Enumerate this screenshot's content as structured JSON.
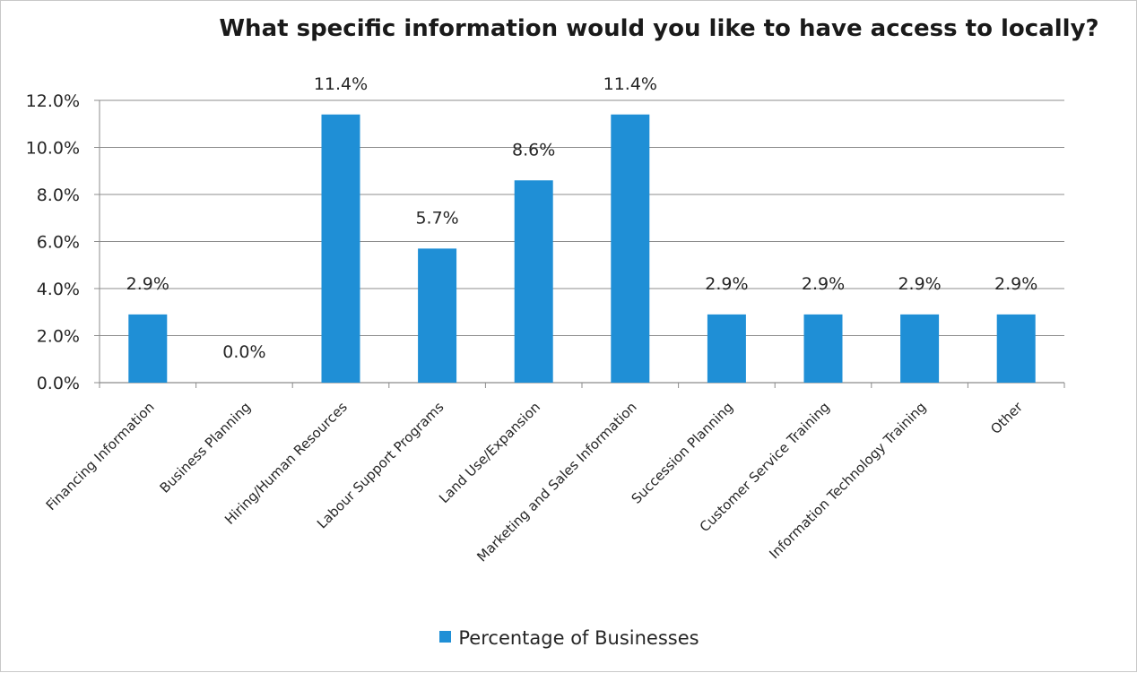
{
  "chart_data": {
    "type": "bar",
    "title": "What specific information would you like to have access to locally?",
    "xlabel": "",
    "ylabel": "",
    "categories": [
      "Financing Information",
      "Business Planning",
      "Hiring/Human Resources",
      "Labour Support Programs",
      "Land Use/Expansion",
      "Marketing and Sales Information",
      "Succession Planning",
      "Customer Service Training",
      "Information Technology Training",
      "Other"
    ],
    "series": [
      {
        "name": "Percentage of Businesses",
        "values": [
          2.9,
          0.0,
          11.4,
          5.7,
          8.6,
          11.4,
          2.9,
          2.9,
          2.9,
          2.9
        ],
        "labels": [
          "2.9%",
          "0.0%",
          "11.4%",
          "5.7%",
          "8.6%",
          "11.4%",
          "2.9%",
          "2.9%",
          "2.9%",
          "2.9%"
        ],
        "color": "#1f8fd6"
      }
    ],
    "ylim": [
      0,
      12
    ],
    "yticks": [
      0,
      2,
      4,
      6,
      8,
      10,
      12
    ],
    "ytick_labels": [
      "0.0%",
      "2.0%",
      "4.0%",
      "6.0%",
      "8.0%",
      "10.0%",
      "12.0%"
    ],
    "grid": true,
    "legend": "bottom-center"
  }
}
